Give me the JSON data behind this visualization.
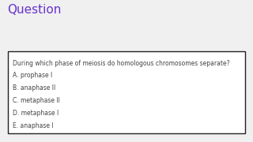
{
  "title": "Question",
  "title_color": "#6633cc",
  "title_fontsize": 11,
  "question": "During which phase of meiosis do homologous chromosomes separate?",
  "options": [
    "A. prophase I",
    "B. anaphase II",
    "C. metaphase II",
    "D. metaphase I",
    "E. anaphase I"
  ],
  "text_color": "#444444",
  "text_fontsize": 5.5,
  "background_color": "#f0f0f0",
  "box_facecolor": "#ffffff",
  "box_edgecolor": "#222222"
}
